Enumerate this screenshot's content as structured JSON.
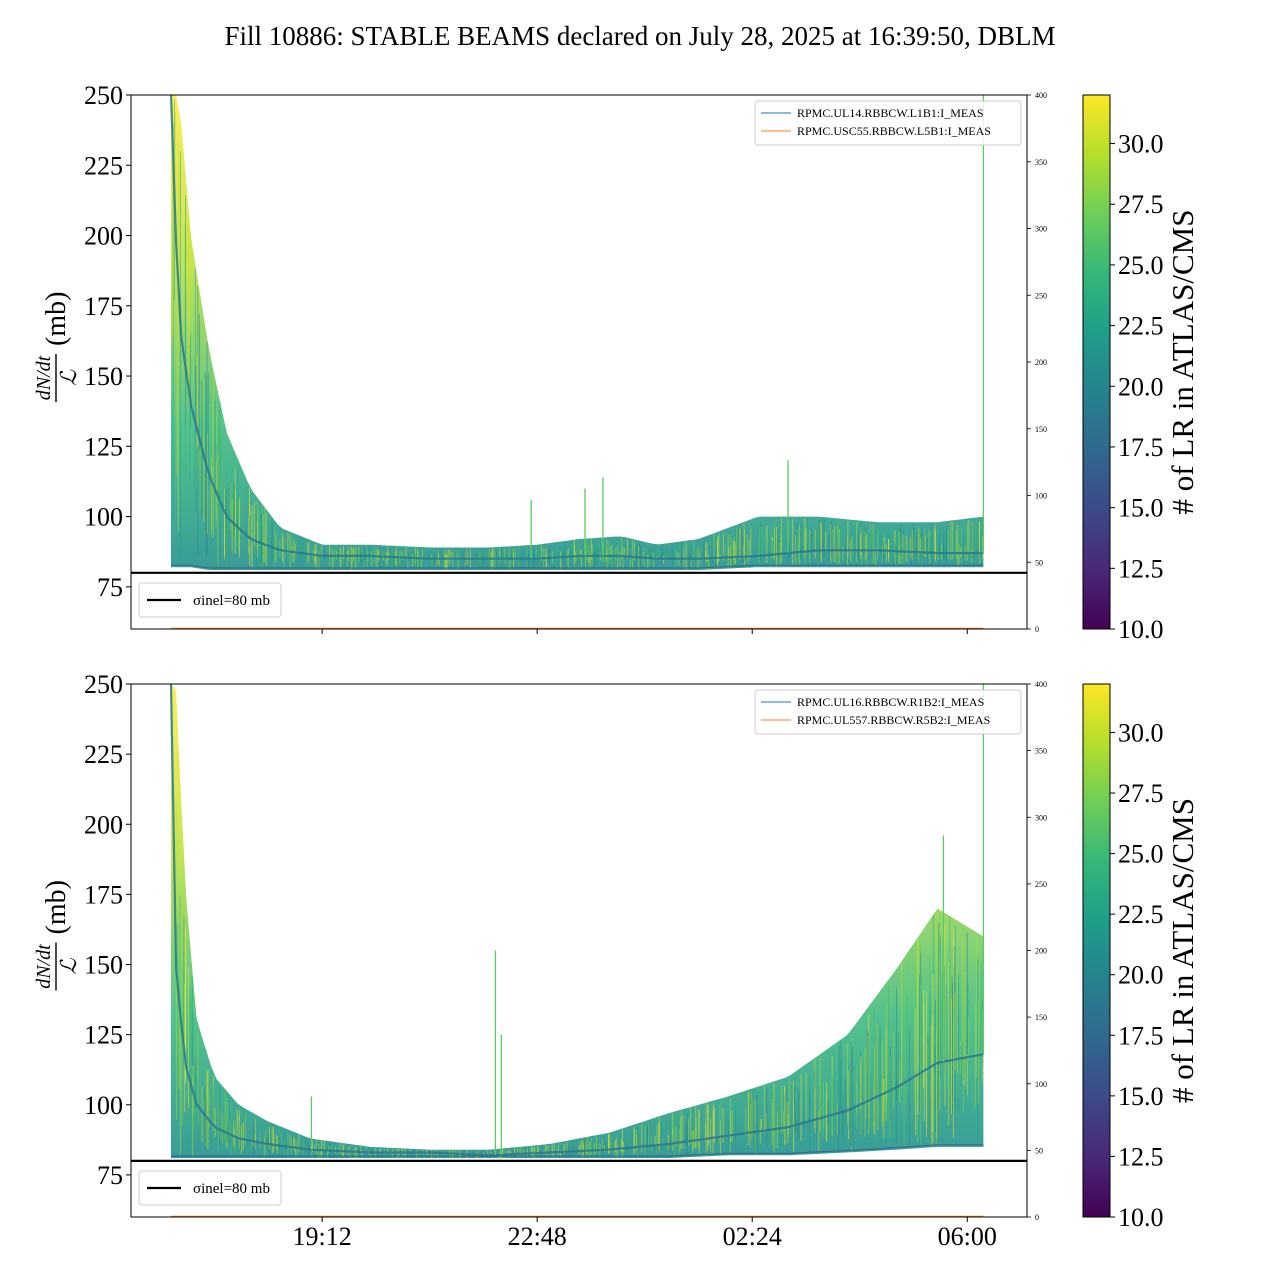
{
  "figure": {
    "title": "Fill 10886: STABLE BEAMS declared on July 28, 2025 at 16:39:50, DBLM"
  },
  "colors": {
    "reference_line": "#000000",
    "series_primary": "#1f77b4",
    "series_secondary": "#ff7f0e",
    "viridis": [
      "#440154",
      "#482878",
      "#3e4989",
      "#31688e",
      "#26828e",
      "#1f9e89",
      "#35b779",
      "#6ece58",
      "#b5de2b",
      "#fde725"
    ]
  },
  "chart_data": [
    {
      "type": "line",
      "panel": "top",
      "ylabel_fraction_num": "dN/dt",
      "ylabel_fraction_den": "ℒ",
      "ylabel_unit": "(mb)",
      "ylim": [
        60,
        250
      ],
      "yticks": [
        75,
        100,
        125,
        150,
        175,
        200,
        225,
        250
      ],
      "y2lim": [
        0,
        400
      ],
      "y2ticks": [
        0,
        50,
        100,
        150,
        200,
        250,
        300,
        350,
        400
      ],
      "xticks_hours": [
        19.2,
        22.8,
        26.4,
        30.0
      ],
      "xtick_labels": [
        "19:12",
        "22:48",
        "02:24",
        "06:00"
      ],
      "x_range_hours": [
        16.0,
        31.0
      ],
      "x_data_range_hours": [
        16.67,
        30.27
      ],
      "reference_line": {
        "label": "σinel=80 mb",
        "y": 80
      },
      "legend": [
        {
          "name": "RPMC.UL14.RBBCW.L1B1:I_MEAS",
          "color": "#1f77b4"
        },
        {
          "name": "RPMC.USC55.RBBCW.L5B1:I_MEAS",
          "color": "#ff7f0e"
        }
      ],
      "legend_position": "upper right",
      "envelope": {
        "x": [
          16.67,
          16.8,
          17.0,
          17.3,
          17.6,
          18.0,
          18.5,
          19.2,
          20.0,
          21.0,
          22.0,
          22.8,
          23.5,
          24.2,
          24.8,
          25.5,
          26.5,
          27.5,
          28.5,
          29.5,
          30.27
        ],
        "upper": [
          250,
          250,
          200,
          160,
          130,
          110,
          96,
          90,
          90,
          89,
          89,
          90,
          92,
          93,
          90,
          92,
          100,
          100,
          98,
          98,
          100
        ],
        "center": [
          250,
          170,
          140,
          115,
          100,
          92,
          88,
          86,
          86,
          85,
          85,
          85,
          86,
          86,
          85,
          85,
          86,
          88,
          88,
          87,
          87
        ],
        "lower": [
          82,
          82,
          82,
          81,
          81,
          81,
          81,
          81,
          81,
          81,
          81,
          81,
          81,
          81,
          81,
          81,
          82,
          82,
          82,
          82,
          82
        ]
      },
      "spikes": [
        {
          "x": 22.7,
          "y": 106
        },
        {
          "x": 23.6,
          "y": 110
        },
        {
          "x": 23.9,
          "y": 114
        },
        {
          "x": 27.0,
          "y": 120
        },
        {
          "x": 30.27,
          "y": 250
        }
      ],
      "colorbar": {
        "label": "# of LR in ATLAS/CMS",
        "range": [
          10,
          32
        ],
        "ticks": [
          10.0,
          12.5,
          15.0,
          17.5,
          20.0,
          22.5,
          25.0,
          27.5,
          30.0
        ],
        "tick_labels": [
          "10.0",
          "12.5",
          "15.0",
          "17.5",
          "20.0",
          "22.5",
          "25.0",
          "27.5",
          "30.0"
        ]
      }
    },
    {
      "type": "line",
      "panel": "bottom",
      "ylabel_fraction_num": "dN/dt",
      "ylabel_fraction_den": "ℒ",
      "ylabel_unit": "(mb)",
      "ylim": [
        60,
        250
      ],
      "yticks": [
        75,
        100,
        125,
        150,
        175,
        200,
        225,
        250
      ],
      "y2lim": [
        0,
        400
      ],
      "y2ticks": [
        0,
        50,
        100,
        150,
        200,
        250,
        300,
        350,
        400
      ],
      "xticks_hours": [
        19.2,
        22.8,
        26.4,
        30.0
      ],
      "xtick_labels": [
        "19:12",
        "22:48",
        "02:24",
        "06:00"
      ],
      "x_range_hours": [
        16.0,
        31.0
      ],
      "x_data_range_hours": [
        16.67,
        30.27
      ],
      "reference_line": {
        "label": "σinel=80 mb",
        "y": 80
      },
      "legend": [
        {
          "name": "RPMC.UL16.RBBCW.R1B2:I_MEAS",
          "color": "#1f77b4"
        },
        {
          "name": "RPMC.UL557.RBBCW.R5B2:I_MEAS",
          "color": "#ff7f0e"
        }
      ],
      "legend_position": "upper right",
      "envelope": {
        "x": [
          16.67,
          16.75,
          16.9,
          17.1,
          17.4,
          17.8,
          18.3,
          19.0,
          20.0,
          21.0,
          22.0,
          23.0,
          24.0,
          25.0,
          26.0,
          27.0,
          28.0,
          28.8,
          29.5,
          30.27
        ],
        "upper": [
          250,
          250,
          180,
          130,
          110,
          100,
          94,
          88,
          85,
          84,
          84,
          86,
          90,
          97,
          103,
          110,
          125,
          148,
          170,
          160
        ],
        "center": [
          250,
          150,
          115,
          100,
          92,
          88,
          86,
          84,
          83,
          83,
          82,
          83,
          84,
          86,
          89,
          92,
          98,
          106,
          115,
          118
        ],
        "lower": [
          81,
          81,
          81,
          81,
          81,
          81,
          81,
          81,
          81,
          81,
          81,
          81,
          81,
          81,
          82,
          82,
          83,
          84,
          85,
          85
        ]
      },
      "spikes": [
        {
          "x": 19.02,
          "y": 103
        },
        {
          "x": 22.1,
          "y": 155
        },
        {
          "x": 22.2,
          "y": 125
        },
        {
          "x": 29.6,
          "y": 196
        },
        {
          "x": 30.27,
          "y": 250
        }
      ],
      "colorbar": {
        "label": "# of LR in ATLAS/CMS",
        "range": [
          10,
          32
        ],
        "ticks": [
          10.0,
          12.5,
          15.0,
          17.5,
          20.0,
          22.5,
          25.0,
          27.5,
          30.0
        ],
        "tick_labels": [
          "10.0",
          "12.5",
          "15.0",
          "17.5",
          "20.0",
          "22.5",
          "25.0",
          "27.5",
          "30.0"
        ]
      }
    }
  ]
}
